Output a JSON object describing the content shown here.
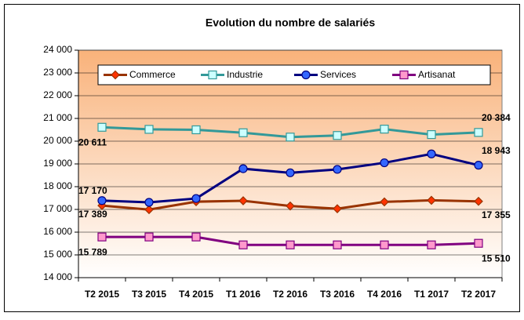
{
  "chart_data": {
    "type": "line",
    "title": "Evolution du nombre de salariés",
    "categories": [
      "T2 2015",
      "T3 2015",
      "T4 2015",
      "T1 2016",
      "T2 2016",
      "T3 2016",
      "T4 2016",
      "T1 2017",
      "T2 2017"
    ],
    "series": [
      {
        "name": "Commerce",
        "color": "#993300",
        "marker_color": "#ff3300",
        "marker": "diamond",
        "values": [
          17170,
          16990,
          17340,
          17380,
          17150,
          17030,
          17330,
          17400,
          17355
        ],
        "value_labels": [
          "17 170",
          null,
          null,
          null,
          null,
          null,
          null,
          null,
          "17 355"
        ]
      },
      {
        "name": "Industrie",
        "color": "#339999",
        "marker_color": "#ccffff",
        "marker": "square",
        "values": [
          20611,
          20520,
          20500,
          20370,
          20180,
          20250,
          20530,
          20290,
          20384
        ],
        "value_labels": [
          "20 611",
          null,
          null,
          null,
          null,
          null,
          null,
          null,
          "20 384"
        ]
      },
      {
        "name": "Services",
        "color": "#000080",
        "marker_color": "#3366ff",
        "marker": "circle",
        "values": [
          17389,
          17310,
          17480,
          18790,
          18610,
          18760,
          19050,
          19440,
          18943
        ],
        "value_labels": [
          "17 389",
          null,
          null,
          null,
          null,
          null,
          null,
          null,
          "18 943"
        ]
      },
      {
        "name": "Artisanat",
        "color": "#800080",
        "marker_color": "#ff99cc",
        "marker": "square",
        "values": [
          15789,
          15789,
          15789,
          15440,
          15440,
          15440,
          15440,
          15440,
          15510
        ],
        "value_labels": [
          "15 789",
          null,
          null,
          null,
          null,
          null,
          null,
          null,
          "15 510"
        ]
      }
    ],
    "ylim": [
      14000,
      24000
    ],
    "yticks": [
      {
        "value": 14000,
        "label": "14 000"
      },
      {
        "value": 15000,
        "label": "15 000"
      },
      {
        "value": 16000,
        "label": "16 000"
      },
      {
        "value": 17000,
        "label": "17 000"
      },
      {
        "value": 18000,
        "label": "18 000"
      },
      {
        "value": 19000,
        "label": "19 000"
      },
      {
        "value": 20000,
        "label": "20 000"
      },
      {
        "value": 21000,
        "label": "21 000"
      },
      {
        "value": 22000,
        "label": "22 000"
      },
      {
        "value": 23000,
        "label": "23 000"
      },
      {
        "value": 24000,
        "label": "24 000"
      }
    ],
    "grid": true,
    "legend": "top"
  }
}
